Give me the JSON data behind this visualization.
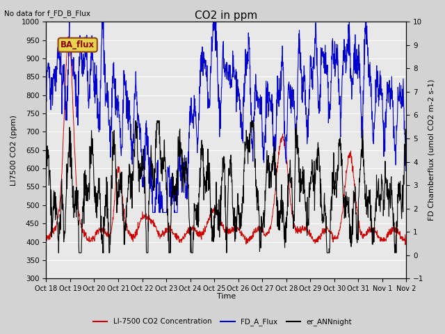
{
  "title": "CO2 in ppm",
  "top_left_text": "No data for f_FD_B_Flux",
  "legend_box_label": "BA_flux",
  "ylabel_left": "LI7500 CO2 (ppm)",
  "ylabel_right": "FD Chamberflux (umol CO2 m-2 s-1)",
  "xlabel": "Time",
  "ylim_left": [
    300,
    1000
  ],
  "ylim_right": [
    -1.0,
    10.0
  ],
  "yticks_left": [
    300,
    350,
    400,
    450,
    500,
    550,
    600,
    650,
    700,
    750,
    800,
    850,
    900,
    950,
    1000
  ],
  "yticks_right": [
    -1.0,
    0.0,
    1.0,
    2.0,
    3.0,
    4.0,
    5.0,
    6.0,
    7.0,
    8.0,
    9.0,
    10.0
  ],
  "xtick_labels": [
    "Oct 18",
    "Oct 19",
    "Oct 20",
    "Oct 21",
    "Oct 22",
    "Oct 23",
    "Oct 24",
    "Oct 25",
    "Oct 26",
    "Oct 27",
    "Oct 28",
    "Oct 29",
    "Oct 30",
    "Oct 31",
    "Nov 1",
    "Nov 2"
  ],
  "background_color": "#d3d3d3",
  "plot_bg_color": "#e8e8e8",
  "line_red_label": "LI-7500 CO2 Concentration",
  "line_blue_label": "FD_A_Flux",
  "line_black_label": "er_ANNnight",
  "line_red_color": "#cc0000",
  "line_blue_color": "#0000cc",
  "line_black_color": "#000000",
  "legend_box_bg": "#e8d44d",
  "legend_box_border": "#8b4513",
  "figwidth": 6.4,
  "figheight": 4.8,
  "dpi": 100
}
